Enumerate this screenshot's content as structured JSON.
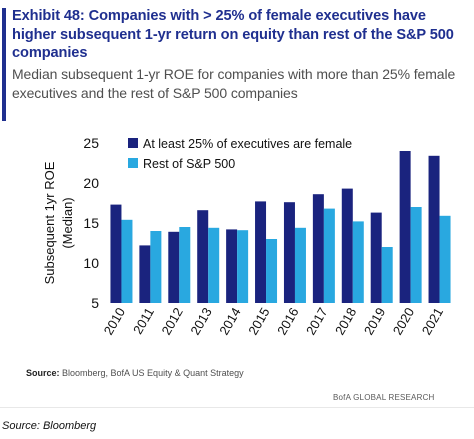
{
  "header": {
    "title": "Exhibit 48: Companies with > 25% of female executives have higher subsequent 1-yr return on equity than rest of the S&P 500 companies",
    "subtitle": "Median subsequent 1-yr ROE for companies with more than 25% female executives and the rest of S&P 500 companies"
  },
  "chart_data": {
    "type": "bar",
    "categories": [
      "2010",
      "2011",
      "2012",
      "2013",
      "2014",
      "2015",
      "2016",
      "2017",
      "2018",
      "2019",
      "2020",
      "2021"
    ],
    "series": [
      {
        "name": "At least 25% of executives are female",
        "color": "#1a237e",
        "values": [
          17.3,
          12.2,
          13.9,
          16.6,
          14.2,
          17.7,
          17.6,
          18.6,
          19.3,
          16.3,
          24.0,
          23.4
        ]
      },
      {
        "name": "Rest of S&P 500",
        "color": "#29a8e0",
        "values": [
          15.4,
          14.0,
          14.5,
          14.4,
          14.1,
          13.0,
          14.4,
          16.8,
          15.2,
          12.0,
          17.0,
          15.9
        ]
      }
    ],
    "ylabel": "Subsequent 1yr ROE\n(Median)",
    "ylim": [
      5,
      25
    ],
    "yticks": [
      5,
      10,
      15,
      20,
      25
    ],
    "grid": false,
    "legend": "top-left"
  },
  "footer": {
    "source_label": "Source:",
    "source_text": " Bloomberg, BofA US Equity & Quant Strategy",
    "brand": "BofA GLOBAL RESEARCH",
    "caption": "Source: Bloomberg"
  }
}
